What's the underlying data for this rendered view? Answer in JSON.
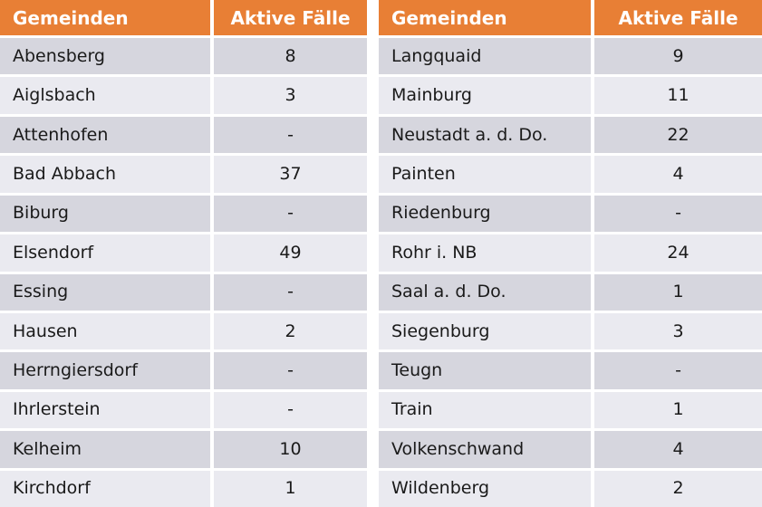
{
  "colors": {
    "header_bg": "#e87f35",
    "header_text": "#ffffff",
    "row_dark": "#d6d6de",
    "row_light": "#eaeaf0",
    "cell_text": "#1a1a1a"
  },
  "chart_data": [
    {
      "type": "table",
      "columns": [
        "Gemeinden",
        "Aktive Fälle"
      ],
      "rows": [
        [
          "Abensberg",
          "8"
        ],
        [
          "Aiglsbach",
          "3"
        ],
        [
          "Attenhofen",
          "-"
        ],
        [
          "Bad Abbach",
          "37"
        ],
        [
          "Biburg",
          "-"
        ],
        [
          "Elsendorf",
          "49"
        ],
        [
          "Essing",
          "-"
        ],
        [
          "Hausen",
          "2"
        ],
        [
          "Herrngiersdorf",
          "-"
        ],
        [
          "Ihrlerstein",
          "-"
        ],
        [
          "Kelheim",
          "10"
        ],
        [
          "Kirchdorf",
          "1"
        ]
      ]
    },
    {
      "type": "table",
      "columns": [
        "Gemeinden",
        "Aktive Fälle"
      ],
      "rows": [
        [
          "Langquaid",
          "9"
        ],
        [
          "Mainburg",
          "11"
        ],
        [
          "Neustadt a. d. Do.",
          "22"
        ],
        [
          "Painten",
          "4"
        ],
        [
          "Riedenburg",
          "-"
        ],
        [
          "Rohr i. NB",
          "24"
        ],
        [
          "Saal a. d. Do.",
          "1"
        ],
        [
          "Siegenburg",
          "3"
        ],
        [
          "Teugn",
          "-"
        ],
        [
          "Train",
          "1"
        ],
        [
          "Volkenschwand",
          "4"
        ],
        [
          "Wildenberg",
          "2"
        ]
      ]
    }
  ]
}
